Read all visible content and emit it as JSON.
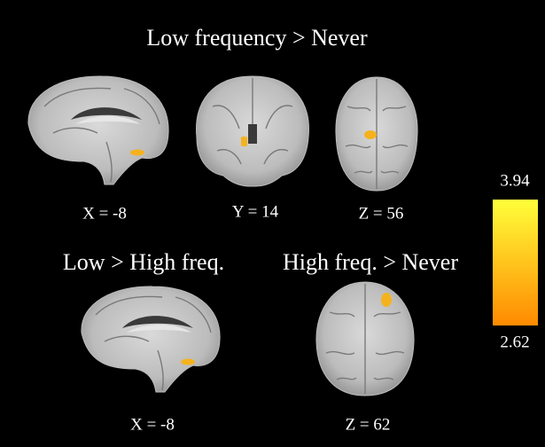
{
  "panels": [
    {
      "title": "Low frequency > Never",
      "views": [
        {
          "label": "X = -8"
        },
        {
          "label": "Y = 14"
        },
        {
          "label": "Z = 56"
        }
      ]
    },
    {
      "title": "Low > High freq.",
      "views": [
        {
          "label": "X = -8"
        }
      ]
    },
    {
      "title": "High freq. > Never",
      "views": [
        {
          "label": "Z = 62"
        }
      ]
    }
  ],
  "colorbar": {
    "max": 3.94,
    "min": 2.62
  }
}
